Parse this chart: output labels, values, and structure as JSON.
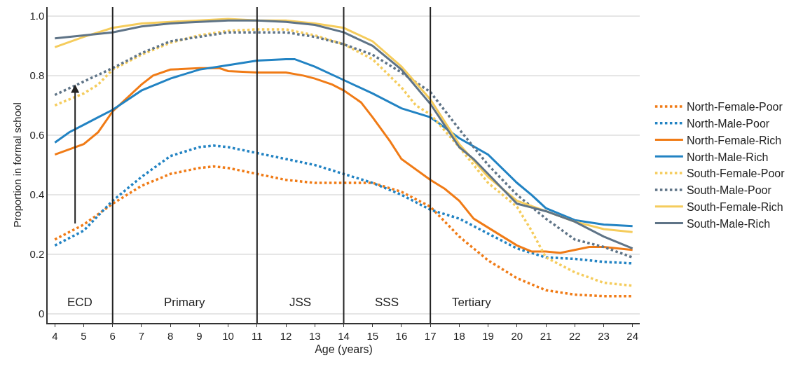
{
  "chart_data": {
    "type": "line",
    "xlabel": "Age (years)",
    "ylabel": "Proportion in formal school",
    "xlim": [
      3.75,
      24.25
    ],
    "xticks": [
      4,
      5,
      6,
      7,
      8,
      9,
      10,
      11,
      12,
      13,
      14,
      15,
      16,
      17,
      18,
      19,
      20,
      21,
      22,
      23,
      24
    ],
    "ylim": [
      -0.03,
      1.03
    ],
    "yticks": [
      0,
      {
        "value": 0.2,
        "label": "0.2"
      },
      {
        "value": 0.4,
        "label": "0.4"
      },
      {
        "value": 0.6,
        "label": "0.6"
      },
      {
        "value": 0.8,
        "label": "0.8"
      },
      {
        "value": 1,
        "label": "1.0"
      }
    ],
    "grid": "y",
    "legend": "right",
    "marker": "none",
    "ref_lines": [
      {
        "axis": "x",
        "value": 6,
        "color": "#222222"
      },
      {
        "axis": "x",
        "value": 11,
        "color": "#222222"
      },
      {
        "axis": "x",
        "value": 14,
        "color": "#222222"
      },
      {
        "axis": "x",
        "value": 17,
        "color": "#222222"
      }
    ],
    "annotations": [
      "ECD",
      "Primary",
      "JSS",
      "SSS",
      "Tertiary"
    ],
    "series": [
      {
        "name": "North-Female-Poor",
        "color": "#f07b16",
        "line_style": "dotted",
        "x": [
          4,
          5,
          6,
          7,
          8,
          9,
          9.5,
          10,
          11,
          12,
          13,
          14,
          15,
          16,
          17,
          18,
          19,
          20,
          21,
          22,
          23,
          24
        ],
        "values": [
          0.25,
          0.3,
          0.37,
          0.43,
          0.47,
          0.49,
          0.495,
          0.49,
          0.47,
          0.45,
          0.44,
          0.44,
          0.44,
          0.41,
          0.36,
          0.26,
          0.18,
          0.12,
          0.08,
          0.065,
          0.06,
          0.06
        ]
      },
      {
        "name": "North-Male-Poor",
        "color": "#2283c3",
        "line_style": "dotted",
        "x": [
          4,
          5,
          6,
          7,
          8,
          9,
          9.5,
          10,
          11,
          12,
          13,
          14,
          15,
          16,
          17,
          18,
          19,
          20,
          21,
          22,
          23,
          24
        ],
        "values": [
          0.23,
          0.28,
          0.38,
          0.46,
          0.53,
          0.56,
          0.565,
          0.56,
          0.54,
          0.52,
          0.5,
          0.47,
          0.44,
          0.4,
          0.35,
          0.32,
          0.27,
          0.22,
          0.19,
          0.185,
          0.175,
          0.17
        ]
      },
      {
        "name": "North-Female-Rich",
        "color": "#f07b16",
        "line_style": "solid",
        "x": [
          4,
          5,
          5.5,
          6,
          7,
          7.4,
          8,
          9,
          9.7,
          10,
          11,
          12,
          12.6,
          13,
          13.6,
          14,
          14.6,
          15,
          15.6,
          16,
          17,
          17.5,
          18,
          18.5,
          19,
          19.5,
          20,
          20.5,
          21,
          21.5,
          22,
          22.5,
          23,
          24
        ],
        "values": [
          0.535,
          0.57,
          0.61,
          0.68,
          0.77,
          0.8,
          0.82,
          0.825,
          0.825,
          0.815,
          0.81,
          0.81,
          0.8,
          0.79,
          0.77,
          0.75,
          0.71,
          0.66,
          0.58,
          0.52,
          0.45,
          0.42,
          0.38,
          0.32,
          0.29,
          0.26,
          0.23,
          0.21,
          0.21,
          0.205,
          0.215,
          0.225,
          0.225,
          0.215
        ]
      },
      {
        "name": "North-Male-Rich",
        "color": "#2283c3",
        "line_style": "solid",
        "x": [
          4,
          4.5,
          5,
          5.5,
          6,
          7,
          8,
          9,
          10,
          11,
          12,
          12.3,
          13,
          14,
          15,
          16,
          17,
          17.3,
          18,
          19,
          20,
          20.5,
          21,
          22,
          23,
          24
        ],
        "values": [
          0.575,
          0.61,
          0.635,
          0.66,
          0.685,
          0.75,
          0.79,
          0.82,
          0.835,
          0.85,
          0.855,
          0.855,
          0.83,
          0.785,
          0.74,
          0.69,
          0.66,
          0.64,
          0.59,
          0.535,
          0.44,
          0.4,
          0.355,
          0.315,
          0.3,
          0.295
        ]
      },
      {
        "name": "South-Female-Poor",
        "color": "#f5cc5c",
        "line_style": "dotted",
        "x": [
          4,
          5,
          5.5,
          6,
          7,
          8,
          9,
          10,
          11,
          12,
          13,
          14,
          15,
          16,
          16.5,
          17,
          18,
          19,
          20,
          20.5,
          21,
          22,
          23,
          24
        ],
        "values": [
          0.7,
          0.74,
          0.77,
          0.82,
          0.87,
          0.91,
          0.935,
          0.95,
          0.955,
          0.955,
          0.935,
          0.905,
          0.855,
          0.76,
          0.7,
          0.67,
          0.56,
          0.44,
          0.36,
          0.28,
          0.19,
          0.14,
          0.105,
          0.095
        ]
      },
      {
        "name": "South-Male-Poor",
        "color": "#5f7487",
        "line_style": "dotted",
        "x": [
          4,
          5,
          6,
          7,
          8,
          9,
          10,
          11,
          12,
          13,
          14,
          15,
          16,
          17,
          18,
          19,
          20,
          21,
          22,
          23,
          24
        ],
        "values": [
          0.735,
          0.78,
          0.825,
          0.875,
          0.915,
          0.93,
          0.945,
          0.945,
          0.945,
          0.93,
          0.905,
          0.87,
          0.81,
          0.745,
          0.62,
          0.5,
          0.4,
          0.32,
          0.25,
          0.225,
          0.19
        ]
      },
      {
        "name": "South-Female-Rich",
        "color": "#f5cc5c",
        "line_style": "solid",
        "x": [
          4,
          5,
          6,
          7,
          8,
          9,
          10,
          11,
          12,
          13,
          14,
          15,
          16,
          17,
          18,
          19,
          20,
          21,
          22,
          23,
          24
        ],
        "values": [
          0.895,
          0.93,
          0.96,
          0.975,
          0.98,
          0.985,
          0.99,
          0.985,
          0.985,
          0.975,
          0.96,
          0.915,
          0.83,
          0.72,
          0.57,
          0.46,
          0.38,
          0.345,
          0.31,
          0.285,
          0.275
        ]
      },
      {
        "name": "South-Male-Rich",
        "color": "#5f7487",
        "line_style": "solid",
        "x": [
          4,
          5,
          6,
          7,
          8,
          9,
          10,
          11,
          12,
          13,
          14,
          15,
          16,
          17,
          18,
          18.5,
          19,
          20,
          21,
          22,
          23,
          24
        ],
        "values": [
          0.925,
          0.935,
          0.945,
          0.965,
          0.975,
          0.98,
          0.985,
          0.985,
          0.98,
          0.97,
          0.945,
          0.9,
          0.82,
          0.705,
          0.56,
          0.52,
          0.47,
          0.37,
          0.345,
          0.31,
          0.26,
          0.22
        ]
      }
    ]
  }
}
